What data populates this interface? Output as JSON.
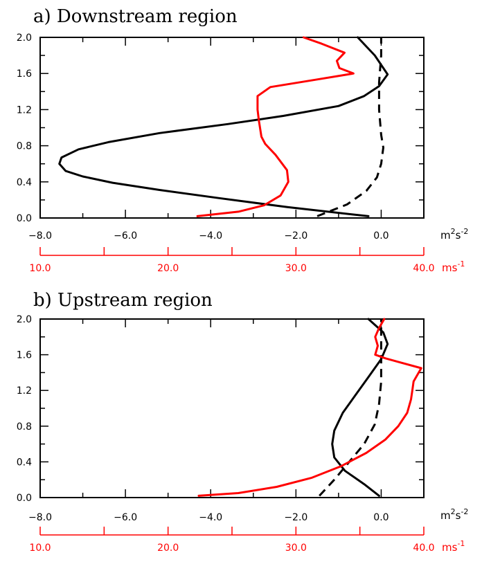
{
  "colors": {
    "black": "#000000",
    "red": "#ff0000",
    "background": "#ffffff"
  },
  "chart_data": [
    {
      "type": "line",
      "title": "a) Downstream region",
      "ylim": [
        0.0,
        2.0
      ],
      "ytick_labels": [
        "0.0",
        "0.4",
        "0.8",
        "1.2",
        "1.6",
        "2.0"
      ],
      "xlim_bottom": [
        -8.0,
        1.0
      ],
      "xlabel_bottom": {
        "base1": "m",
        "sup1": "2",
        "base2": "s",
        "sup2": "-2"
      },
      "xtick_labels_bottom": [
        "-8.0",
        "-6.0",
        "-4.0",
        "-2.0",
        "0.0"
      ],
      "xlim_red_axis": [
        10.0,
        40.0
      ],
      "xlabel_red_axis": {
        "base": "ms",
        "sup": "-1"
      },
      "xtick_labels_red_axis": [
        "10.0",
        "20.0",
        "30.0",
        "40.0"
      ],
      "series": [
        {
          "color": "black",
          "style": "solid",
          "points": [
            [
              -0.3,
              0.02
            ],
            [
              -2.2,
              0.12
            ],
            [
              -3.8,
              0.22
            ],
            [
              -5.2,
              0.31
            ],
            [
              -6.3,
              0.39
            ],
            [
              -7.0,
              0.46
            ],
            [
              -7.4,
              0.52
            ],
            [
              -7.55,
              0.6
            ],
            [
              -7.5,
              0.67
            ],
            [
              -7.1,
              0.76
            ],
            [
              -6.4,
              0.84
            ],
            [
              -5.2,
              0.94
            ],
            [
              -3.6,
              1.04
            ],
            [
              -2.3,
              1.13
            ],
            [
              -1.0,
              1.24
            ],
            [
              -0.4,
              1.35
            ],
            [
              -0.05,
              1.46
            ],
            [
              0.15,
              1.59
            ],
            [
              -0.15,
              1.8
            ],
            [
              -0.55,
              2.0
            ]
          ]
        },
        {
          "color": "black",
          "style": "dashed",
          "points": [
            [
              -1.5,
              0.02
            ],
            [
              -0.8,
              0.15
            ],
            [
              -0.35,
              0.3
            ],
            [
              -0.1,
              0.45
            ],
            [
              0.0,
              0.6
            ],
            [
              0.05,
              0.78
            ],
            [
              0.0,
              0.92
            ],
            [
              -0.05,
              1.2
            ],
            [
              -0.05,
              1.5
            ],
            [
              0.0,
              1.8
            ],
            [
              0.0,
              2.0
            ]
          ]
        },
        {
          "color": "red",
          "style": "solid",
          "points": [
            [
              22.3,
              0.02
            ],
            [
              25.5,
              0.07
            ],
            [
              27.5,
              0.14
            ],
            [
              28.8,
              0.25
            ],
            [
              29.4,
              0.4
            ],
            [
              29.3,
              0.53
            ],
            [
              28.4,
              0.7
            ],
            [
              27.6,
              0.82
            ],
            [
              27.3,
              0.9
            ],
            [
              27.1,
              1.08
            ],
            [
              27.0,
              1.2
            ],
            [
              27.0,
              1.35
            ],
            [
              28.0,
              1.45
            ],
            [
              31.5,
              1.53
            ],
            [
              34.5,
              1.6
            ],
            [
              33.4,
              1.66
            ],
            [
              33.2,
              1.74
            ],
            [
              33.8,
              1.83
            ],
            [
              32.0,
              1.93
            ],
            [
              30.6,
              2.0
            ]
          ]
        }
      ]
    },
    {
      "type": "line",
      "title": "b) Upstream region",
      "ylim": [
        0.0,
        2.0
      ],
      "ytick_labels": [
        "0.0",
        "0.4",
        "0.8",
        "1.2",
        "1.6",
        "2.0"
      ],
      "xlim_bottom": [
        -8.0,
        1.0
      ],
      "xlabel_bottom": {
        "base1": "m",
        "sup1": "2",
        "base2": "s",
        "sup2": "-2"
      },
      "xtick_labels_bottom": [
        "-8.0",
        "-6.0",
        "-4.0",
        "-2.0",
        "0.0"
      ],
      "xlim_red_axis": [
        10.0,
        40.0
      ],
      "xlabel_red_axis": {
        "base": "ms",
        "sup": "-1"
      },
      "xtick_labels_red_axis": [
        "10.0",
        "20.0",
        "30.0",
        "40.0"
      ],
      "series": [
        {
          "color": "black",
          "style": "solid",
          "points": [
            [
              -0.05,
              0.02
            ],
            [
              -0.4,
              0.15
            ],
            [
              -0.85,
              0.3
            ],
            [
              -1.1,
              0.45
            ],
            [
              -1.15,
              0.6
            ],
            [
              -1.1,
              0.75
            ],
            [
              -0.9,
              0.95
            ],
            [
              -0.6,
              1.15
            ],
            [
              -0.3,
              1.35
            ],
            [
              0.0,
              1.55
            ],
            [
              0.15,
              1.72
            ],
            [
              0.05,
              1.85
            ],
            [
              -0.3,
              2.0
            ]
          ]
        },
        {
          "color": "black",
          "style": "dashed",
          "points": [
            [
              -1.45,
              0.02
            ],
            [
              -1.1,
              0.2
            ],
            [
              -0.75,
              0.4
            ],
            [
              -0.4,
              0.6
            ],
            [
              -0.15,
              0.82
            ],
            [
              -0.05,
              1.05
            ],
            [
              0.0,
              1.3
            ],
            [
              0.0,
              1.55
            ],
            [
              0.0,
              1.8
            ],
            [
              0.0,
              2.0
            ]
          ]
        },
        {
          "color": "red",
          "style": "solid",
          "points": [
            [
              22.4,
              0.02
            ],
            [
              25.5,
              0.05
            ],
            [
              28.5,
              0.12
            ],
            [
              31.2,
              0.22
            ],
            [
              33.5,
              0.35
            ],
            [
              35.5,
              0.5
            ],
            [
              37.0,
              0.65
            ],
            [
              38.0,
              0.8
            ],
            [
              38.7,
              0.95
            ],
            [
              39.0,
              1.1
            ],
            [
              39.1,
              1.2
            ],
            [
              39.2,
              1.3
            ],
            [
              39.6,
              1.4
            ],
            [
              39.8,
              1.45
            ],
            [
              38.0,
              1.52
            ],
            [
              37.0,
              1.56
            ],
            [
              36.2,
              1.6
            ],
            [
              36.4,
              1.7
            ],
            [
              36.2,
              1.8
            ],
            [
              36.5,
              1.9
            ],
            [
              36.9,
              2.0
            ]
          ]
        }
      ]
    }
  ]
}
